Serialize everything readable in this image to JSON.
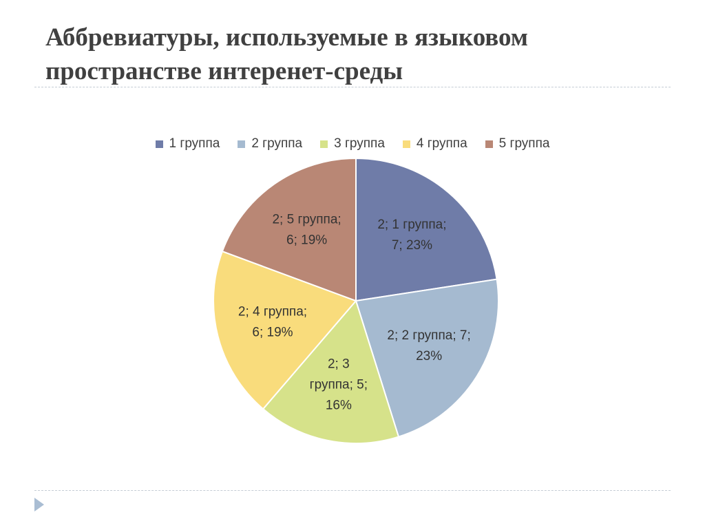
{
  "title": {
    "line1": "Аббревиатуры, используемые в языковом",
    "line2": "пространстве интеренет-среды"
  },
  "chart_data": {
    "type": "pie",
    "legend_position": "top",
    "categories": [
      "1 группа",
      "2 группа",
      "3 группа",
      "4 группа",
      "5 группа"
    ],
    "series": [
      {
        "values": [
          7,
          7,
          5,
          6,
          6
        ]
      }
    ],
    "percents": [
      23,
      23,
      16,
      19,
      19
    ],
    "colors": [
      "#6f7ca8",
      "#a5bad0",
      "#d6e28a",
      "#f9dc7c",
      "#b98775"
    ],
    "data_labels": [
      [
        "2; 1 группа;",
        "7; 23%"
      ],
      [
        "2; 2 группа; 7;",
        "23%"
      ],
      [
        "2; 3",
        "группа; 5;",
        "16%"
      ],
      [
        "2; 4 группа;",
        "6; 19%"
      ],
      [
        "2; 5 группа;",
        "6; 19%"
      ]
    ]
  },
  "nav": {
    "icon": "triangle-right-icon",
    "color": "#a9bdd3"
  }
}
